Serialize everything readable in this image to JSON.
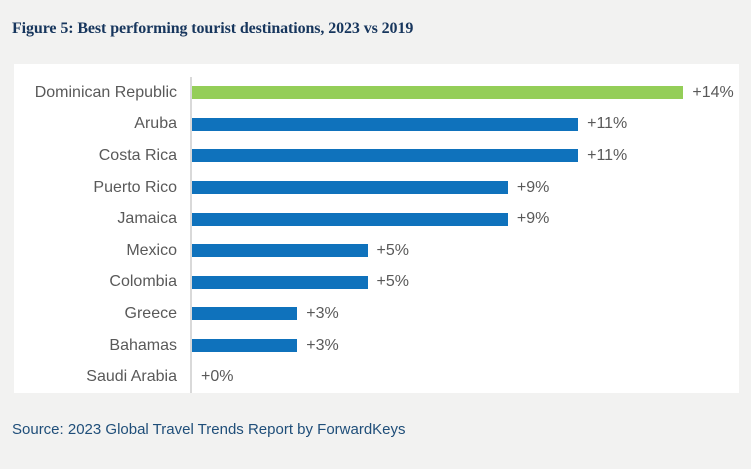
{
  "header": {
    "title": "Figure 5: Best performing tourist destinations, 2023 vs 2019"
  },
  "footer": {
    "source": "Source: 2023 Global Travel Trends Report by ForwardKeys"
  },
  "colors": {
    "background": "#F2F2F1",
    "panel": "#FFFFFF",
    "title_text": "#17365D",
    "source_text": "#1F4E79",
    "label_text": "#595959",
    "axis_line": "#D9D9D9",
    "bar_blue": "#0F72BC",
    "bar_green": "#94CE58"
  },
  "chart_data": {
    "type": "bar",
    "orientation": "horizontal",
    "title": "Figure 5: Best performing tourist destinations, 2023 vs 2019",
    "categories": [
      "Dominican Republic",
      "Aruba",
      "Costa Rica",
      "Puerto Rico",
      "Jamaica",
      "Mexico",
      "Colombia",
      "Greece",
      "Bahamas",
      "Saudi Arabia"
    ],
    "values": [
      14,
      11,
      11,
      9,
      9,
      5,
      5,
      3,
      3,
      0
    ],
    "value_labels": [
      "+14%",
      "+11%",
      "+11%",
      "+9%",
      "+9%",
      "+5%",
      "+5%",
      "+3%",
      "+3%",
      "+0%"
    ],
    "bar_colors": [
      "#94CE58",
      "#0F72BC",
      "#0F72BC",
      "#0F72BC",
      "#0F72BC",
      "#0F72BC",
      "#0F72BC",
      "#0F72BC",
      "#0F72BC",
      "#0F72BC"
    ],
    "xlabel": "",
    "ylabel": "",
    "xlim": [
      0,
      14
    ],
    "grid": false,
    "legend": "none",
    "data_labels": true,
    "highlight_note": "Dominican Republic bar highlighted green; all others blue",
    "source": "Source: 2023 Global Travel Trends Report by ForwardKeys"
  }
}
